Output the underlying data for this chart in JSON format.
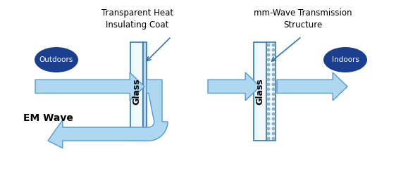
{
  "title1": "Transparent Heat\nInsulating Coat",
  "title2": "mm-Wave Transmission\nStructure",
  "label_outdoors": "Outdoors",
  "label_indoors": "Indoors",
  "label_em_wave": "EM Wave",
  "label_glass": "Glass",
  "arrow_color": "#add8f0",
  "arrow_edge_color": "#5599cc",
  "glass_fill": "#f0f8ff",
  "glass_edge": "#3377aa",
  "coat_fill": "#b8d8ee",
  "coat_dots_color": "#8ab4cc",
  "ellipse_fill": "#1a3f8f",
  "ellipse_text_color": "white",
  "text_color": "black",
  "bg_color": "white",
  "annot_arrow_color": "#3377aa",
  "title_fontsize": 8.5,
  "label_fontsize": 7.5,
  "glass_text_fontsize": 9,
  "em_wave_fontsize": 10
}
